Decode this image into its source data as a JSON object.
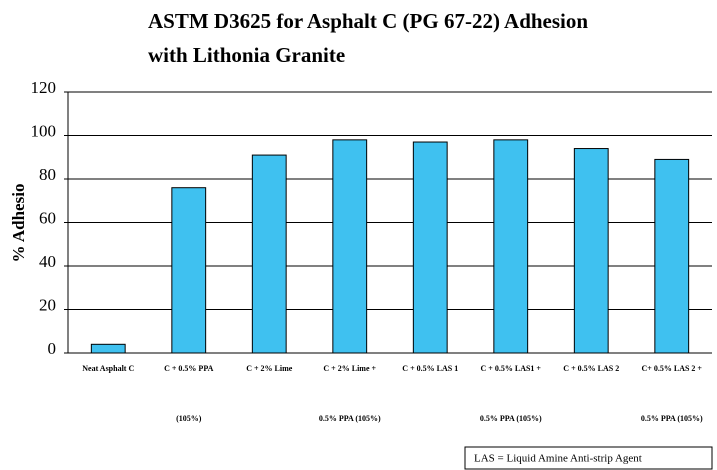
{
  "chart_data": {
    "type": "bar",
    "title": "ASTM D3625  for Asphalt C (PG 67-22) Adhesion with Lithonia Granite",
    "y_label": "% Adhesio",
    "categories": [
      [
        "Neat Asphalt C"
      ],
      [
        "C + 0.5% PPA",
        "(105%)"
      ],
      [
        "C + 2% Lime"
      ],
      [
        "C + 2% Lime +",
        "0.5% PPA (105%)"
      ],
      [
        "C + 0.5% LAS 1"
      ],
      [
        "C + 0.5% LAS1 +",
        "0.5% PPA (105%)"
      ],
      [
        "C + 0.5% LAS 2"
      ],
      [
        "C+ 0.5% LAS 2 +",
        "0.5% PPA (105%)"
      ]
    ],
    "values": [
      4,
      76,
      91,
      98,
      97,
      98,
      94,
      89
    ],
    "color": "#3fc1f0",
    "ylim": [
      0,
      120
    ],
    "yticks": [
      0,
      20,
      40,
      60,
      80,
      100,
      120
    ],
    "grid": true,
    "annotation": "LAS = Liquid Amine Anti-strip Agent"
  }
}
